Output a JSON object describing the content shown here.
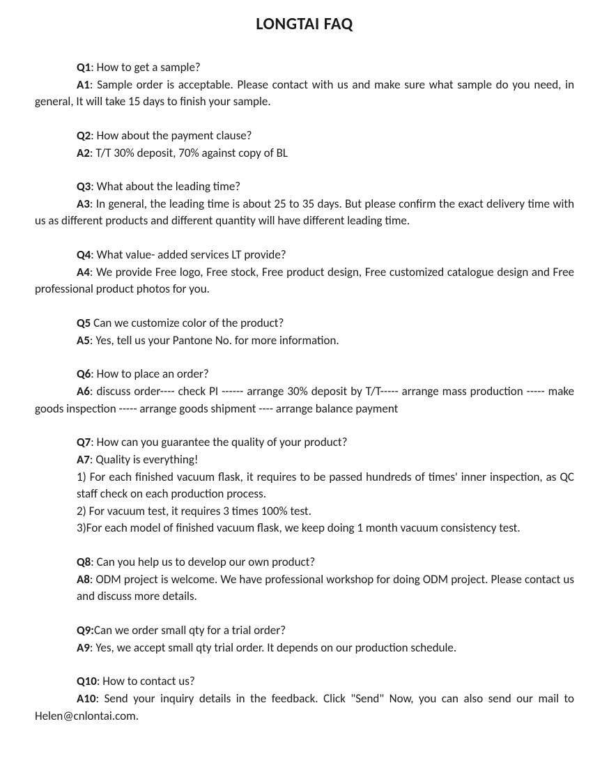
{
  "title": "LONGTAI FAQ",
  "faq": [
    {
      "q_label": "Q1",
      "q_text": ": How to get a sample?",
      "a_label": "A1",
      "a_text": ": Sample order is acceptable. Please contact with us and make sure what sample do you need, in general, It will take 15 days to finish your sample.",
      "a_justify": true,
      "a_wrap_flush": true
    },
    {
      "q_label": "Q2",
      "q_text": ": How about the payment clause?",
      "a_label": "A2",
      "a_text": ": T/T 30% deposit, 70% against copy of BL"
    },
    {
      "q_label": "Q3",
      "q_text": ": What about the leading time?",
      "a_label": "A3",
      "a_text": ": In general, the leading time is about 25 to 35 days. But please confirm the exact delivery time with us as different products and different quantity will have different leading time.",
      "a_justify": true,
      "a_wrap_flush": true
    },
    {
      "q_label": "Q4",
      "q_text": ": What value- added services LT provide?",
      "a_label": "A4",
      "a_text": ": We provide Free logo, Free stock, Free product design, Free customized catalogue design and Free professional product photos for you.",
      "a_justify": true,
      "a_wrap_flush": true
    },
    {
      "q_label": "Q5",
      "q_text": " Can we customize color of the product?",
      "a_label": "A5",
      "a_text": ": Yes, tell us your Pantone No. for more information."
    },
    {
      "q_label": "Q6",
      "q_text": ": How to place an order?",
      "a_label": "A6",
      "a_text": ": discuss order---- check PI ------ arrange 30% deposit by T/T----- arrange mass production ----- make goods inspection ----- arrange goods shipment ---- arrange balance payment",
      "a_wrap_flush": true
    },
    {
      "q_label": "Q7",
      "q_text": ": How can you guarantee the quality of your product?",
      "a_label": "A7",
      "a_text": ": Quality is everything!",
      "sub": [
        "1) For each finished vacuum flask, it requires to be passed hundreds of times' inner inspection, as QC staff check on each production process.",
        "2) For vacuum test, it requires 3 times 100% test.",
        "3)For each model of finished vacuum flask, we keep doing 1 month vacuum consistency test."
      ]
    },
    {
      "q_label": "Q8",
      "q_text": ": Can you help us to develop our own product?",
      "a_label": "A8",
      "a_text": ": ODM project is welcome. We have professional workshop for doing ODM project. Please contact us and discuss more details.",
      "a_wrap_indent": true
    },
    {
      "q_label": "Q9:",
      "q_text": "Can we order small qty for a trial order?",
      "a_label": "A9",
      "a_text": ": Yes, we accept small qty trial order. It depends on our production schedule."
    },
    {
      "q_label": "Q10",
      "q_text": ": How to contact us?",
      "a_label": "A10",
      "a_text": ": Send your inquiry details in the feedback. Click \"Send\" Now, you can also send our mail to Helen@cnlontai.com.",
      "a_justify": true,
      "a_wrap_flush": true
    }
  ]
}
